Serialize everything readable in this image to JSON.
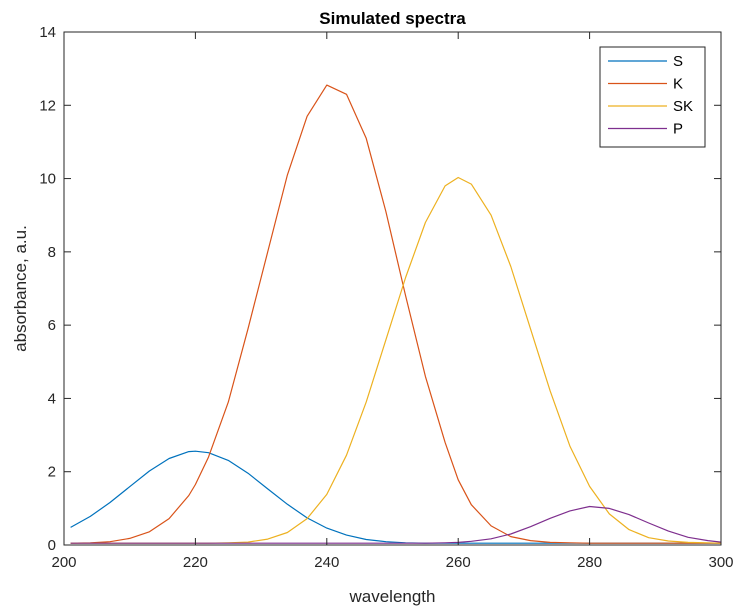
{
  "chart_data": {
    "type": "line",
    "title": "Simulated spectra",
    "xlabel": "wavelength",
    "ylabel": "absorbance, a.u.",
    "xlim": [
      200,
      300
    ],
    "ylim": [
      0,
      14
    ],
    "xticks": [
      200,
      220,
      240,
      260,
      280,
      300
    ],
    "yticks": [
      0,
      2,
      4,
      6,
      8,
      10,
      12,
      14
    ],
    "grid": false,
    "legend_position": "top-right",
    "x": [
      201,
      204,
      207,
      210,
      213,
      216,
      219,
      220,
      222,
      225,
      228,
      231,
      234,
      237,
      240,
      243,
      246,
      249,
      252,
      255,
      258,
      260,
      262,
      265,
      268,
      271,
      274,
      277,
      280,
      283,
      286,
      289,
      292,
      295,
      298,
      300
    ],
    "series": [
      {
        "name": "S",
        "color": "#0072BD",
        "values": [
          0.48,
          0.78,
          1.16,
          1.59,
          2.02,
          2.36,
          2.55,
          2.56,
          2.52,
          2.31,
          1.96,
          1.53,
          1.11,
          0.74,
          0.46,
          0.27,
          0.15,
          0.09,
          0.06,
          0.05,
          0.05,
          0.05,
          0.05,
          0.05,
          0.05,
          0.05,
          0.05,
          0.05,
          0.05,
          0.05,
          0.05,
          0.05,
          0.05,
          0.05,
          0.05,
          0.05
        ]
      },
      {
        "name": "K",
        "color": "#D95319",
        "values": [
          0.05,
          0.06,
          0.09,
          0.18,
          0.36,
          0.72,
          1.35,
          1.65,
          2.4,
          3.9,
          5.9,
          8.0,
          10.1,
          11.7,
          12.55,
          12.3,
          11.1,
          9.1,
          6.8,
          4.6,
          2.8,
          1.78,
          1.1,
          0.52,
          0.23,
          0.12,
          0.07,
          0.06,
          0.05,
          0.05,
          0.05,
          0.05,
          0.05,
          0.05,
          0.05,
          0.05
        ]
      },
      {
        "name": "SK",
        "color": "#EDB120",
        "values": [
          0.05,
          0.05,
          0.05,
          0.05,
          0.05,
          0.05,
          0.05,
          0.05,
          0.05,
          0.06,
          0.08,
          0.16,
          0.34,
          0.72,
          1.38,
          2.45,
          3.9,
          5.6,
          7.3,
          8.8,
          9.8,
          10.03,
          9.85,
          9.0,
          7.6,
          5.9,
          4.2,
          2.7,
          1.6,
          0.85,
          0.42,
          0.2,
          0.11,
          0.07,
          0.06,
          0.05
        ]
      },
      {
        "name": "P",
        "color": "#7E2F8E",
        "values": [
          0.05,
          0.05,
          0.05,
          0.05,
          0.05,
          0.05,
          0.05,
          0.05,
          0.05,
          0.05,
          0.05,
          0.05,
          0.05,
          0.05,
          0.05,
          0.05,
          0.05,
          0.05,
          0.05,
          0.05,
          0.06,
          0.07,
          0.1,
          0.17,
          0.3,
          0.5,
          0.73,
          0.93,
          1.05,
          1.0,
          0.83,
          0.6,
          0.38,
          0.21,
          0.12,
          0.08
        ]
      }
    ]
  }
}
